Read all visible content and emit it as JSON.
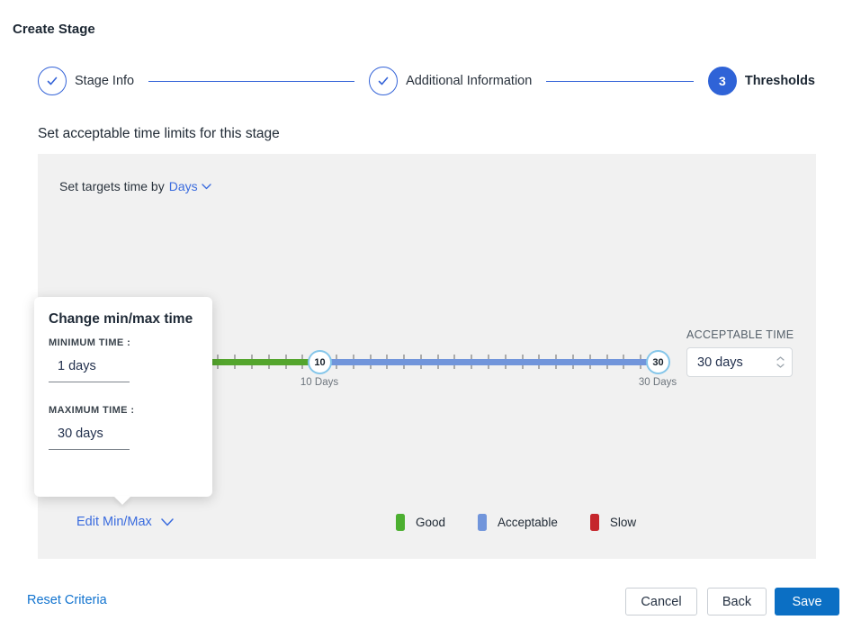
{
  "page": {
    "title": "Create Stage"
  },
  "stepper": {
    "steps": [
      {
        "label": "Stage Info",
        "state": "complete"
      },
      {
        "label": "Additional Information",
        "state": "complete"
      },
      {
        "label": "Thresholds",
        "state": "active",
        "number": "3"
      }
    ]
  },
  "section": {
    "heading": "Set acceptable time limits for this stage"
  },
  "targets": {
    "prefix": "Set targets time by",
    "unit": "Days"
  },
  "slider": {
    "min_day": 1,
    "max_day": 30,
    "good_until_day": 10,
    "handles": [
      {
        "value": "10",
        "label": "10 Days"
      },
      {
        "value": "30",
        "label": "30 Days"
      }
    ],
    "colors": {
      "good": "#54a52d",
      "acceptable": "#7195db"
    }
  },
  "acceptable_time": {
    "label": "ACCEPTABLE TIME",
    "value": "30 days"
  },
  "popup": {
    "title": "Change min/max time",
    "min_label": "MINIMUM TIME :",
    "min_value": "1 days",
    "max_label": "MAXIMUM TIME :",
    "max_value": "30 days"
  },
  "edit_minmax": {
    "label": "Edit Min/Max"
  },
  "legend": [
    {
      "label": "Good",
      "color": "#4caf30"
    },
    {
      "label": "Acceptable",
      "color": "#7195db"
    },
    {
      "label": "Slow",
      "color": "#c5262c"
    }
  ],
  "footer": {
    "reset": "Reset Criteria",
    "cancel": "Cancel",
    "back": "Back",
    "save": "Save"
  },
  "appearance": {
    "accent_blue": "#2f63d7",
    "save_blue": "#0b6fc4",
    "panel_gray": "#f1f1f1"
  }
}
